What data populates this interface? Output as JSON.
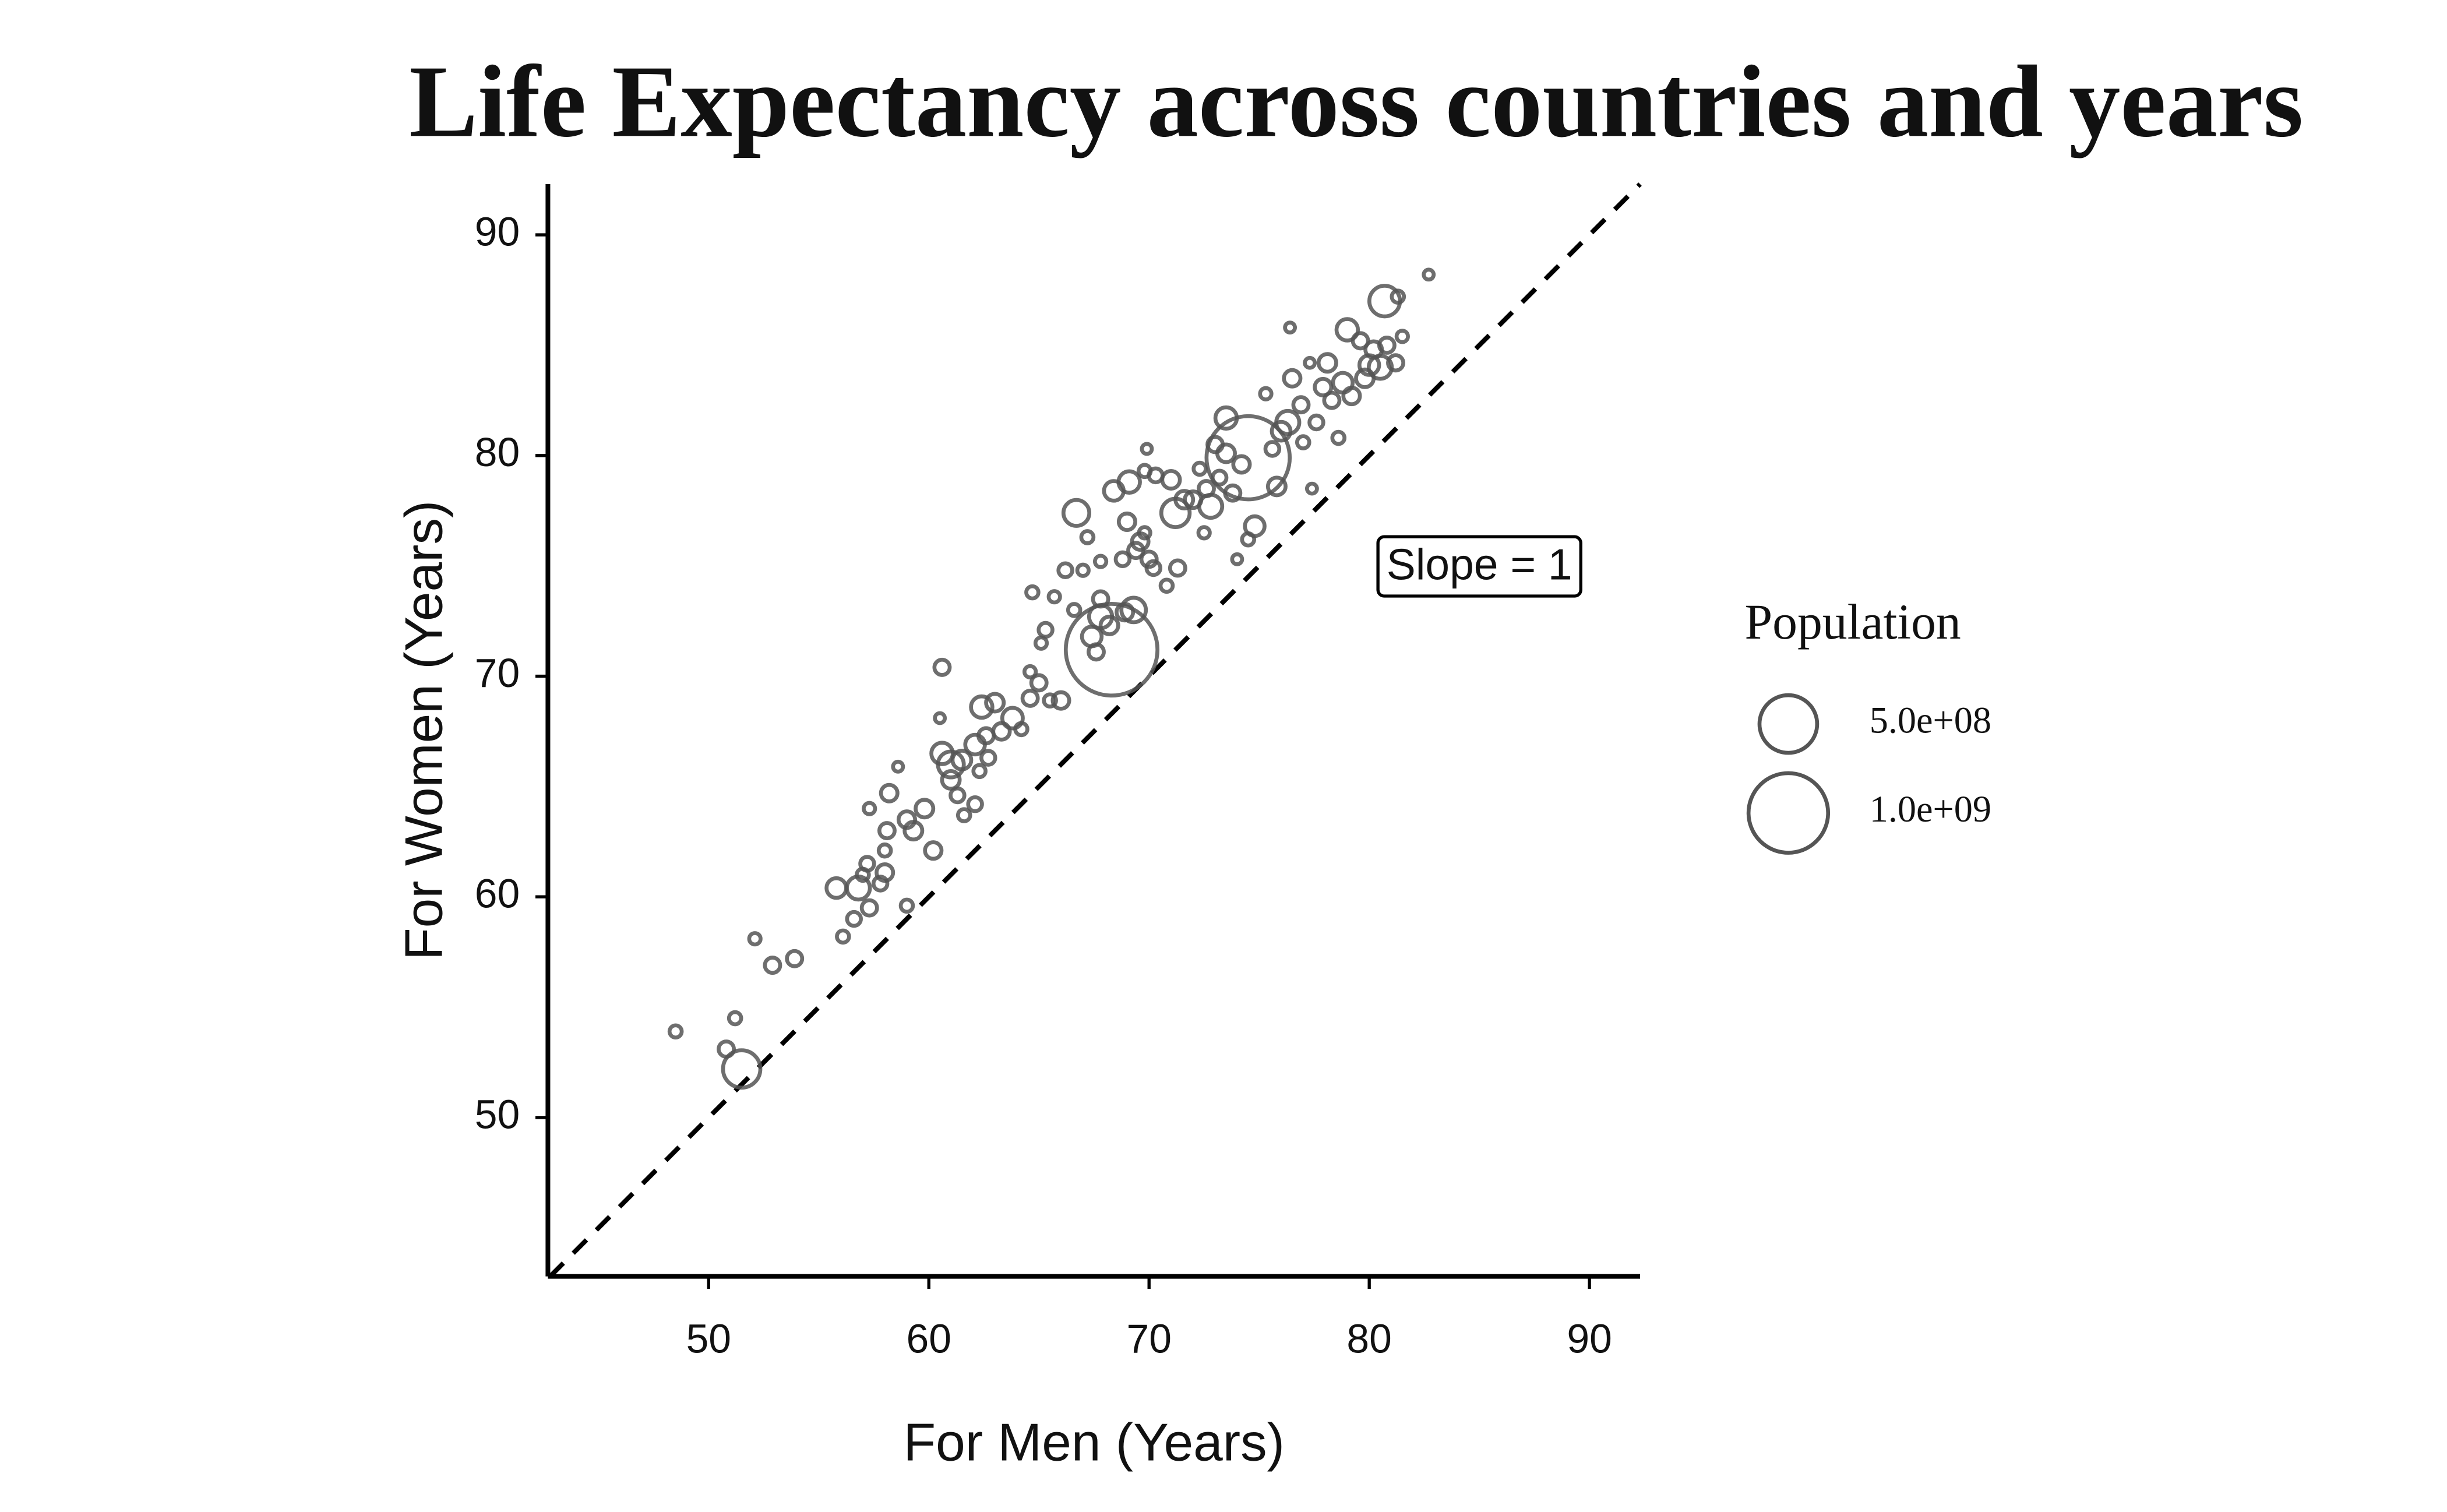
{
  "chart_data": {
    "type": "scatter",
    "title": "Life Expectancy across countries and years",
    "xlabel": "For Men (Years)",
    "ylabel": "For Women (Years)",
    "x": [
      48.5,
      50.8,
      51.5,
      51.2,
      52.1,
      52.9,
      53.9,
      55.8,
      56.1,
      56.6,
      56.8,
      57.0,
      57.3,
      57.2,
      57.3,
      57.8,
      58.0,
      58.0,
      58.1,
      58.2,
      58.6,
      59.0,
      59.3,
      59.0,
      59.8,
      60.2,
      60.5,
      60.6,
      60.6,
      61.0,
      61.0,
      61.3,
      61.5,
      61.6,
      62.1,
      62.3,
      62.1,
      62.4,
      62.6,
      62.7,
      63.0,
      63.3,
      63.8,
      64.2,
      64.6,
      64.6,
      64.7,
      65.0,
      65.1,
      65.3,
      65.5,
      65.7,
      66.0,
      66.2,
      66.7,
      66.6,
      67.0,
      67.2,
      67.4,
      67.6,
      67.8,
      67.8,
      67.8,
      68.2,
      68.3,
      68.4,
      68.8,
      68.9,
      69.1,
      69.0,
      69.3,
      69.4,
      69.6,
      69.8,
      69.9,
      69.8,
      70.0,
      70.2,
      70.3,
      70.8,
      71.0,
      71.2,
      71.3,
      71.6,
      72.0,
      72.3,
      72.5,
      72.6,
      72.8,
      73.0,
      73.2,
      73.5,
      73.5,
      73.8,
      74.0,
      74.2,
      74.5,
      74.5,
      74.8,
      75.3,
      75.6,
      75.8,
      76.0,
      76.3,
      76.4,
      76.5,
      76.9,
      77.0,
      77.3,
      77.4,
      77.6,
      77.9,
      78.1,
      78.3,
      78.6,
      78.8,
      79.0,
      79.2,
      79.6,
      79.8,
      80.0,
      80.2,
      80.5,
      80.7,
      80.8,
      81.2,
      81.3,
      81.5,
      82.7
    ],
    "values": [
      53.9,
      53.1,
      52.2,
      54.5,
      58.1,
      56.9,
      57.2,
      60.4,
      58.2,
      59.0,
      60.4,
      61.0,
      59.5,
      61.5,
      64.0,
      60.6,
      61.1,
      62.1,
      63.0,
      64.7,
      65.9,
      63.5,
      63.0,
      59.6,
      64.0,
      62.1,
      68.1,
      70.4,
      66.5,
      65.3,
      66.0,
      64.6,
      66.2,
      63.7,
      64.2,
      65.7,
      66.9,
      68.6,
      67.3,
      66.3,
      68.8,
      67.5,
      68.1,
      67.6,
      70.2,
      69.0,
      73.8,
      69.7,
      71.5,
      72.1,
      68.9,
      73.6,
      68.9,
      74.8,
      77.4,
      73.0,
      74.8,
      76.3,
      71.8,
      71.1,
      72.7,
      73.5,
      75.2,
      72.3,
      71.2,
      78.4,
      75.3,
      72.9,
      78.8,
      77.0,
      73.0,
      75.7,
      76.1,
      79.3,
      80.3,
      76.5,
      75.3,
      74.9,
      79.1,
      74.1,
      78.9,
      77.4,
      74.9,
      78.0,
      78.0,
      79.4,
      76.5,
      78.5,
      77.7,
      80.5,
      79.0,
      81.7,
      80.1,
      78.3,
      75.3,
      79.6,
      79.9,
      76.2,
      76.8,
      82.8,
      80.3,
      78.6,
      81.1,
      81.5,
      85.8,
      83.5,
      82.3,
      80.6,
      84.2,
      78.5,
      81.5,
      83.1,
      84.2,
      82.5,
      80.8,
      83.3,
      85.7,
      82.7,
      85.2,
      83.5,
      84.1,
      84.8,
      84.0,
      87.0,
      85.0,
      84.2,
      87.2,
      85.4,
      88.2
    ],
    "sizes": [
      10000000,
      20000000,
      190000000,
      10000000,
      8000000,
      20000000,
      20000000,
      40000000,
      10000000,
      15000000,
      60000000,
      10000000,
      20000000,
      15000000,
      8000000,
      15000000,
      25000000,
      10000000,
      20000000,
      25000000,
      5000000,
      25000000,
      30000000,
      10000000,
      30000000,
      25000000,
      5000000,
      20000000,
      50000000,
      30000000,
      80000000,
      15000000,
      35000000,
      10000000,
      15000000,
      10000000,
      40000000,
      50000000,
      20000000,
      15000000,
      30000000,
      25000000,
      45000000,
      10000000,
      8000000,
      20000000,
      10000000,
      20000000,
      8000000,
      15000000,
      10000000,
      8000000,
      25000000,
      15000000,
      80000000,
      10000000,
      8000000,
      10000000,
      40000000,
      20000000,
      60000000,
      20000000,
      8000000,
      30000000,
      1350000000,
      40000000,
      15000000,
      25000000,
      50000000,
      25000000,
      70000000,
      20000000,
      25000000,
      10000000,
      5000000,
      8000000,
      20000000,
      15000000,
      15000000,
      10000000,
      30000000,
      100000000,
      20000000,
      30000000,
      25000000,
      10000000,
      8000000,
      20000000,
      60000000,
      20000000,
      15000000,
      50000000,
      30000000,
      20000000,
      5000000,
      25000000,
      1100000000,
      10000000,
      40000000,
      8000000,
      15000000,
      30000000,
      35000000,
      60000000,
      5000000,
      25000000,
      20000000,
      10000000,
      5000000,
      5000000,
      15000000,
      25000000,
      30000000,
      20000000,
      10000000,
      40000000,
      50000000,
      25000000,
      20000000,
      30000000,
      40000000,
      25000000,
      60000000,
      120000000,
      20000000,
      20000000,
      10000000,
      8000000,
      5000000
    ],
    "color": "#555555",
    "xlim": [
      42.7,
      92.3
    ],
    "ylim": [
      42.8,
      92.3
    ],
    "xticks": [
      50,
      60,
      70,
      80,
      90
    ],
    "yticks": [
      50,
      60,
      70,
      80,
      90
    ],
    "annotation": "Slope = 1",
    "size_legend": {
      "title": "Population",
      "values": [
        {
          "value": 500000000,
          "label": "5.0e+08"
        },
        {
          "value": 1000000000,
          "label": "1.0e+09"
        }
      ]
    }
  }
}
